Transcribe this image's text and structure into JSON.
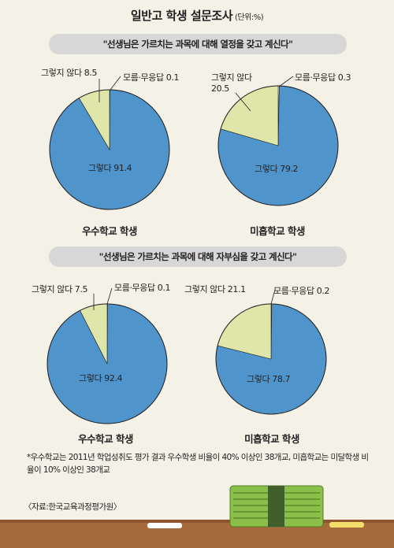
{
  "title": "일반고 학생 설문조사",
  "unit": "(단위:%)",
  "colors": {
    "yes": "#4f95cc",
    "no": "#dfe6a9",
    "unknown": "#ffffff",
    "outline": "#231f20",
    "banner": "#d7d7d7",
    "background": "#f4f1e6"
  },
  "chart_data": [
    {
      "type": "pie",
      "question": "\"선생님은 가르치는 과목에 대해 열정을 갖고 계신다\"",
      "group": "우수학교 학생",
      "slices": [
        {
          "label": "그렇다",
          "value": 91.4,
          "display": "그렇다 91.4"
        },
        {
          "label": "그렇지 않다",
          "value": 8.5,
          "display": "그렇지 않다 8.5"
        },
        {
          "label": "모름·무응답",
          "value": 0.1,
          "display": "모름·무응답 0.1"
        }
      ]
    },
    {
      "type": "pie",
      "question": "\"선생님은 가르치는 과목에 대해 열정을 갖고 계신다\"",
      "group": "미흡학교 학생",
      "slices": [
        {
          "label": "그렇다",
          "value": 79.2,
          "display": "그렇다 79.2"
        },
        {
          "label": "그렇지 않다",
          "value": 20.5,
          "display": "그렇지 않다 20.5"
        },
        {
          "label": "모름·무응답",
          "value": 0.3,
          "display": "모름·무응답 0.3"
        }
      ]
    },
    {
      "type": "pie",
      "question": "\"선생님은 가르치는 과목에 대해 자부심을 갖고 계신다\"",
      "group": "우수학교 학생",
      "slices": [
        {
          "label": "그렇다",
          "value": 92.4,
          "display": "그렇다 92.4"
        },
        {
          "label": "그렇지 않다",
          "value": 7.5,
          "display": "그렇지 않다 7.5"
        },
        {
          "label": "모름·무응답",
          "value": 0.1,
          "display": "모름·무응답 0.1"
        }
      ]
    },
    {
      "type": "pie",
      "question": "\"선생님은 가르치는 과목에 대해 자부심을 갖고 계신다\"",
      "group": "미흡학교 학생",
      "slices": [
        {
          "label": "그렇다",
          "value": 78.7,
          "display": "그렇다 78.7"
        },
        {
          "label": "그렇지 않다",
          "value": 21.1,
          "display": "그렇지 않다 21.1"
        },
        {
          "label": "모름·무응답",
          "value": 0.2,
          "display": "모름·무응답 0.2"
        }
      ]
    }
  ],
  "note": "*우수학교는 2011년 학업성취도 평가 결과 우수학생 비율이 40% 이상인 38개교, 미흡학교는 미달학생 비율이 10% 이상인 38개교",
  "source": "〈자료:한국교육과정평가원〉"
}
